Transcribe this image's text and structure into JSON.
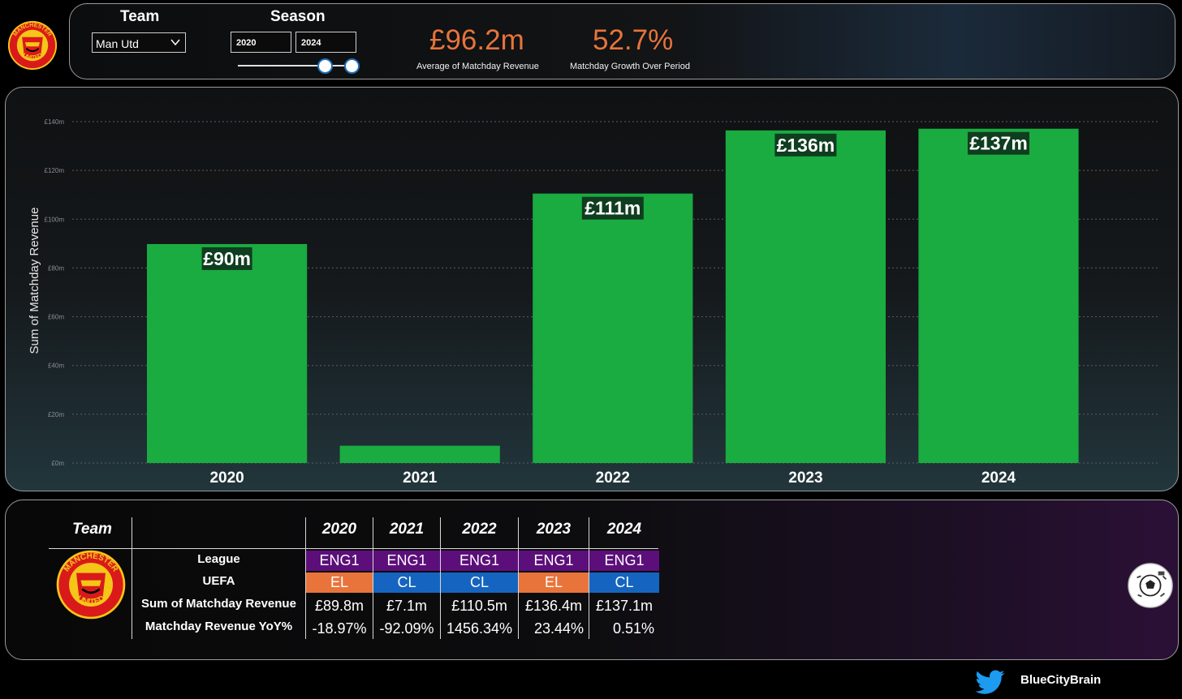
{
  "header": {
    "team_label": "Team",
    "season_label": "Season",
    "team_selected": "Man Utd",
    "season_from": "2020",
    "season_to": "2024",
    "kpi1_value": "£96.2m",
    "kpi1_label": "Average of Matchday Revenue",
    "kpi2_value": "52.7%",
    "kpi2_label": "Matchday Growth Over Period"
  },
  "club_logo": {
    "top_text": "MANCHESTER",
    "bottom_text": "UNITED"
  },
  "chart_data": {
    "type": "bar",
    "categories": [
      "2020",
      "2021",
      "2022",
      "2023",
      "2024"
    ],
    "values": [
      89.8,
      7.1,
      110.5,
      136.4,
      137.1
    ],
    "data_labels": [
      "£90m",
      "",
      "£111m",
      "£136m",
      "£137m"
    ],
    "ylabel": "Sum of Matchday Revenue",
    "ylim": [
      0,
      140
    ],
    "yticks": [
      0,
      20,
      40,
      60,
      80,
      100,
      120,
      140
    ],
    "ytick_labels": [
      "£0m",
      "£20m",
      "£40m",
      "£60m",
      "£80m",
      "£100m",
      "£120m",
      "£140m"
    ],
    "grid": true,
    "bar_color": "#1aab41",
    "label_bg_color": "#0f3d1f"
  },
  "table": {
    "team_header": "Team",
    "years": [
      "2020",
      "2021",
      "2022",
      "2023",
      "2024"
    ],
    "row_labels": [
      "League",
      "UEFA",
      "Sum of Matchday Revenue",
      "Matchday Revenue YoY%"
    ],
    "league": [
      "ENG1",
      "ENG1",
      "ENG1",
      "ENG1",
      "ENG1"
    ],
    "uefa": [
      "EL",
      "CL",
      "CL",
      "EL",
      "CL"
    ],
    "revenue": [
      "£89.8m",
      "£7.1m",
      "£110.5m",
      "£136.4m",
      "£137.1m"
    ],
    "yoy": [
      "-18.97%",
      "-92.09%",
      "1456.34%",
      "23.44%",
      "0.51%"
    ],
    "colors": {
      "league": "#5c0f7a",
      "EL": "#e8743b",
      "CL": "#1565c0"
    }
  },
  "footer": {
    "twitter_icon": "twitter-bird-icon",
    "handle": "BlueCityBrain"
  }
}
